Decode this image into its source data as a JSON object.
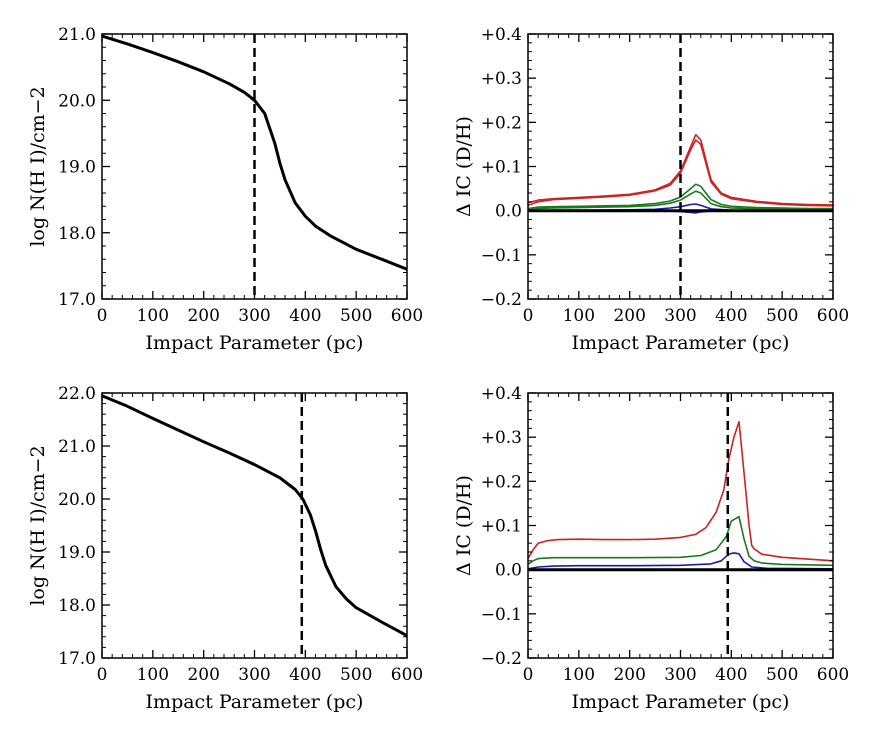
{
  "chart_data": [
    {
      "panel": "top-left",
      "type": "line",
      "xlabel": "Impact Parameter (pc)",
      "ylabel": "log N(H I)/cm−2",
      "xlim": [
        0,
        600
      ],
      "ylim": [
        17.0,
        21.0
      ],
      "xticks": [
        0,
        100,
        200,
        300,
        400,
        500,
        600
      ],
      "xtick_labels": [
        "0",
        "100",
        "200",
        "300",
        "400",
        "500",
        "600"
      ],
      "yticks": [
        17.0,
        18.0,
        19.0,
        20.0,
        21.0
      ],
      "ytick_labels": [
        "17.0",
        "18.0",
        "19.0",
        "20.0",
        "21.0"
      ],
      "vline": 300,
      "series": [
        {
          "name": "log N(H I)",
          "color": "#000000",
          "x": [
            0,
            50,
            100,
            150,
            200,
            250,
            280,
            300,
            320,
            340,
            350,
            360,
            380,
            400,
            420,
            450,
            500,
            550,
            600
          ],
          "y": [
            20.97,
            20.85,
            20.72,
            20.58,
            20.43,
            20.25,
            20.12,
            20.0,
            19.8,
            19.35,
            19.05,
            18.8,
            18.45,
            18.25,
            18.1,
            17.95,
            17.75,
            17.6,
            17.45
          ]
        }
      ]
    },
    {
      "panel": "top-right",
      "type": "line",
      "xlabel": "Impact Parameter (pc)",
      "ylabel": "Δ IC (D/H)",
      "xlim": [
        0,
        600
      ],
      "ylim": [
        -0.2,
        0.4
      ],
      "xticks": [
        0,
        100,
        200,
        300,
        400,
        500,
        600
      ],
      "xtick_labels": [
        "0",
        "100",
        "200",
        "300",
        "400",
        "500",
        "600"
      ],
      "yticks": [
        -0.2,
        -0.1,
        0.0,
        0.1,
        0.2,
        0.3,
        0.4
      ],
      "ytick_labels": [
        "−0.2",
        "−0.1",
        "0.0",
        "+0.1",
        "+0.2",
        "+0.3",
        "+0.4"
      ],
      "vline": 300,
      "series": [
        {
          "name": "red upper",
          "color": "#cc2222",
          "x": [
            0,
            20,
            50,
            100,
            150,
            200,
            250,
            280,
            300,
            320,
            330,
            340,
            360,
            380,
            400,
            450,
            500,
            550,
            600
          ],
          "y": [
            0.018,
            0.024,
            0.027,
            0.03,
            0.033,
            0.037,
            0.047,
            0.062,
            0.09,
            0.145,
            0.172,
            0.16,
            0.07,
            0.04,
            0.03,
            0.021,
            0.016,
            0.014,
            0.013
          ]
        },
        {
          "name": "red lower",
          "color": "#cc2222",
          "x": [
            0,
            20,
            50,
            100,
            150,
            200,
            250,
            280,
            300,
            320,
            330,
            340,
            360,
            380,
            400,
            450,
            500,
            550,
            600
          ],
          "y": [
            0.012,
            0.02,
            0.025,
            0.028,
            0.031,
            0.035,
            0.045,
            0.058,
            0.085,
            0.138,
            0.16,
            0.15,
            0.065,
            0.037,
            0.027,
            0.019,
            0.014,
            0.012,
            0.011
          ]
        },
        {
          "name": "green upper",
          "color": "#1a7a1a",
          "x": [
            0,
            20,
            50,
            100,
            150,
            200,
            250,
            280,
            300,
            320,
            330,
            340,
            360,
            380,
            400,
            450,
            500,
            550,
            600
          ],
          "y": [
            0.005,
            0.008,
            0.009,
            0.01,
            0.011,
            0.012,
            0.016,
            0.022,
            0.031,
            0.05,
            0.06,
            0.055,
            0.025,
            0.014,
            0.01,
            0.007,
            0.006,
            0.005,
            0.005
          ]
        },
        {
          "name": "green lower",
          "color": "#1a7a1a",
          "x": [
            0,
            20,
            50,
            100,
            150,
            200,
            250,
            280,
            300,
            320,
            330,
            340,
            360,
            380,
            400,
            450,
            500,
            550,
            600
          ],
          "y": [
            0.002,
            0.005,
            0.006,
            0.007,
            0.008,
            0.009,
            0.012,
            0.017,
            0.024,
            0.038,
            0.044,
            0.04,
            0.016,
            0.009,
            0.006,
            0.004,
            0.003,
            0.003,
            0.003
          ]
        },
        {
          "name": "blue upper",
          "color": "#1a1aaa",
          "x": [
            0,
            50,
            100,
            200,
            250,
            280,
            300,
            320,
            330,
            340,
            360,
            400,
            500,
            600
          ],
          "y": [
            0.0,
            0.001,
            0.001,
            0.002,
            0.003,
            0.006,
            0.009,
            0.014,
            0.015,
            0.012,
            0.004,
            0.001,
            0.0,
            0.0
          ]
        },
        {
          "name": "blue lower",
          "color": "#1a1aaa",
          "x": [
            0,
            50,
            100,
            200,
            250,
            280,
            300,
            320,
            330,
            340,
            360,
            400,
            500,
            600
          ],
          "y": [
            0.0,
            0.0,
            0.0,
            0.0,
            0.0,
            -0.001,
            -0.002,
            -0.004,
            -0.005,
            -0.003,
            -0.001,
            0.0,
            0.0,
            0.0
          ]
        },
        {
          "name": "zero line",
          "color": "#000000",
          "x": [
            0,
            600
          ],
          "y": [
            0.0,
            0.0
          ]
        }
      ]
    },
    {
      "panel": "bottom-left",
      "type": "line",
      "xlabel": "Impact Parameter (pc)",
      "ylabel": "log N(H I)/cm−2",
      "xlim": [
        0,
        600
      ],
      "ylim": [
        17.0,
        22.0
      ],
      "xticks": [
        0,
        100,
        200,
        300,
        400,
        500,
        600
      ],
      "xtick_labels": [
        "0",
        "100",
        "200",
        "300",
        "400",
        "500",
        "600"
      ],
      "yticks": [
        17.0,
        18.0,
        19.0,
        20.0,
        21.0,
        22.0
      ],
      "ytick_labels": [
        "17.0",
        "18.0",
        "19.0",
        "20.0",
        "21.0",
        "22.0"
      ],
      "vline": 393,
      "series": [
        {
          "name": "log N(H I)",
          "color": "#000000",
          "x": [
            0,
            50,
            100,
            150,
            200,
            250,
            300,
            350,
            380,
            395,
            410,
            420,
            430,
            440,
            460,
            480,
            500,
            550,
            600
          ],
          "y": [
            21.95,
            21.75,
            21.52,
            21.3,
            21.08,
            20.87,
            20.65,
            20.4,
            20.18,
            20.0,
            19.7,
            19.4,
            19.05,
            18.75,
            18.35,
            18.12,
            17.95,
            17.68,
            17.42
          ]
        }
      ]
    },
    {
      "panel": "bottom-right",
      "type": "line",
      "xlabel": "Impact Parameter (pc)",
      "ylabel": "Δ IC (D/H)",
      "xlim": [
        0,
        600
      ],
      "ylim": [
        -0.2,
        0.4
      ],
      "xticks": [
        0,
        100,
        200,
        300,
        400,
        500,
        600
      ],
      "xtick_labels": [
        "0",
        "100",
        "200",
        "300",
        "400",
        "500",
        "600"
      ],
      "yticks": [
        -0.2,
        -0.1,
        0.0,
        0.1,
        0.2,
        0.3,
        0.4
      ],
      "ytick_labels": [
        "−0.2",
        "−0.1",
        "0.0",
        "+0.1",
        "+0.2",
        "+0.3",
        "+0.4"
      ],
      "vline": 393,
      "series": [
        {
          "name": "red",
          "color": "#cc2222",
          "x": [
            0,
            10,
            20,
            40,
            60,
            100,
            150,
            200,
            250,
            300,
            330,
            350,
            370,
            385,
            395,
            405,
            415,
            425,
            435,
            440,
            445,
            460,
            500,
            550,
            600
          ],
          "y": [
            0.025,
            0.045,
            0.06,
            0.066,
            0.068,
            0.069,
            0.068,
            0.068,
            0.069,
            0.073,
            0.08,
            0.095,
            0.13,
            0.18,
            0.25,
            0.3,
            0.335,
            0.22,
            0.1,
            0.055,
            0.047,
            0.035,
            0.028,
            0.024,
            0.02
          ]
        },
        {
          "name": "green",
          "color": "#1a7a1a",
          "x": [
            0,
            10,
            20,
            50,
            100,
            200,
            300,
            340,
            370,
            390,
            400,
            415,
            425,
            435,
            445,
            460,
            500,
            600
          ],
          "y": [
            0.012,
            0.02,
            0.025,
            0.027,
            0.027,
            0.027,
            0.028,
            0.032,
            0.045,
            0.075,
            0.11,
            0.12,
            0.07,
            0.03,
            0.02,
            0.015,
            0.012,
            0.01
          ]
        },
        {
          "name": "blue",
          "color": "#1a1aaa",
          "x": [
            0,
            20,
            50,
            100,
            200,
            300,
            360,
            380,
            395,
            405,
            415,
            425,
            440,
            470,
            600
          ],
          "y": [
            0.002,
            0.006,
            0.008,
            0.009,
            0.009,
            0.01,
            0.013,
            0.02,
            0.035,
            0.038,
            0.036,
            0.018,
            0.006,
            0.003,
            0.002
          ]
        },
        {
          "name": "zero line",
          "color": "#000000",
          "x": [
            0,
            600
          ],
          "y": [
            0.0,
            0.0
          ]
        }
      ]
    }
  ]
}
